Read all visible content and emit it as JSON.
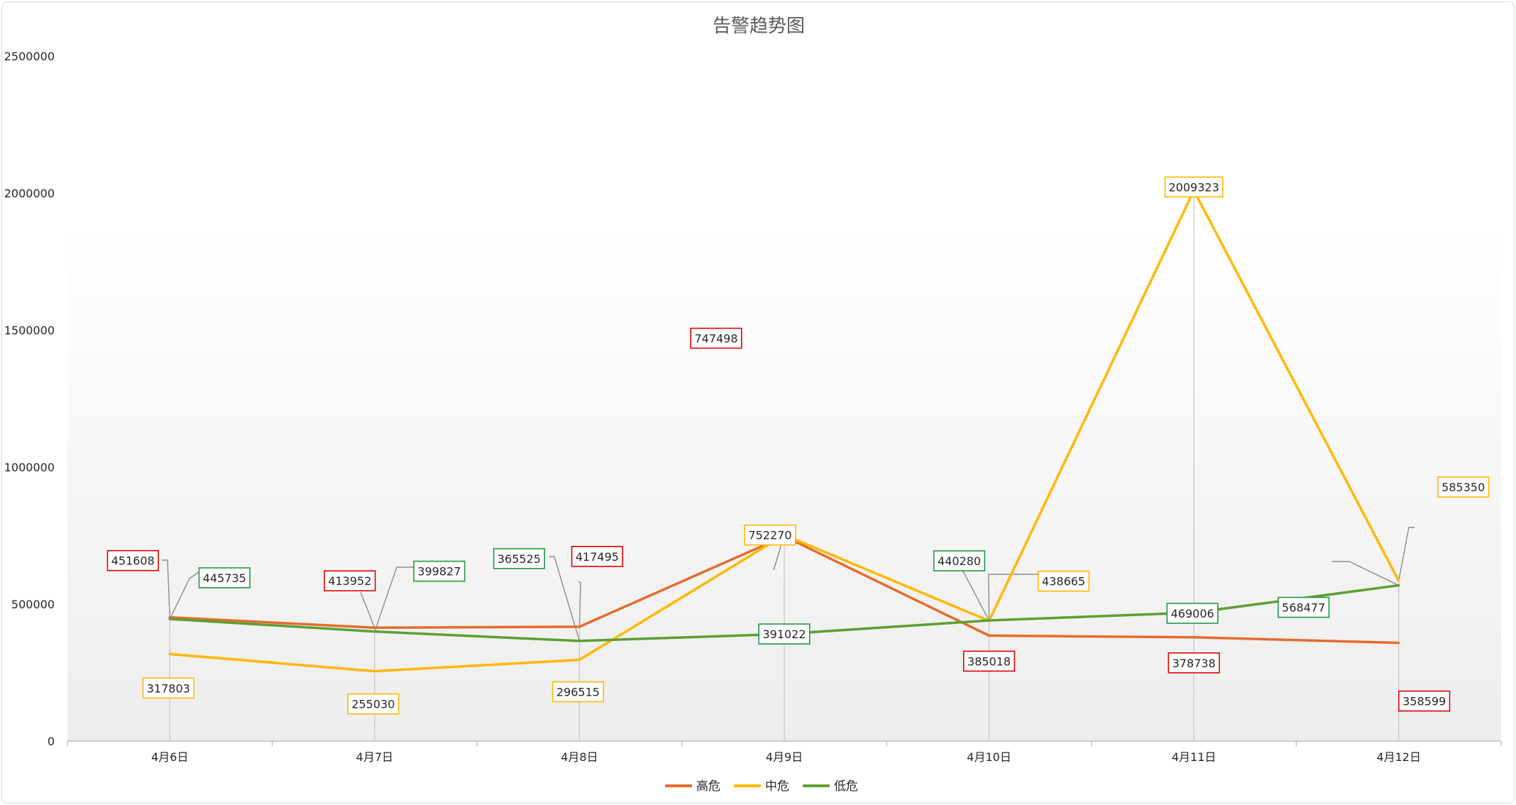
{
  "chart_data": {
    "type": "line",
    "title": "告警趋势图",
    "xlabel": "",
    "ylabel": "",
    "categories": [
      "4月6日",
      "4月7日",
      "4月8日",
      "4月9日",
      "4月10日",
      "4月11日",
      "4月12日"
    ],
    "ylim": [
      0,
      2500000
    ],
    "yticks": [
      0,
      500000,
      1000000,
      1500000,
      2000000,
      2500000
    ],
    "grid": false,
    "legend_position": "bottom",
    "series": [
      {
        "name": "高危",
        "color": "#E46C2B",
        "label_border": "#E00000",
        "values": [
          451608,
          413952,
          417495,
          747498,
          385018,
          378738,
          358599
        ]
      },
      {
        "name": "中危",
        "color": "#FFB800",
        "label_border": "#FFB800",
        "values": [
          317803,
          255030,
          296515,
          752270,
          438665,
          2009323,
          585350
        ]
      },
      {
        "name": "低危",
        "color": "#5BA033",
        "label_border": "#1E9A3E",
        "values": [
          445735,
          399827,
          365525,
          391022,
          440280,
          469006,
          568477
        ]
      }
    ]
  }
}
